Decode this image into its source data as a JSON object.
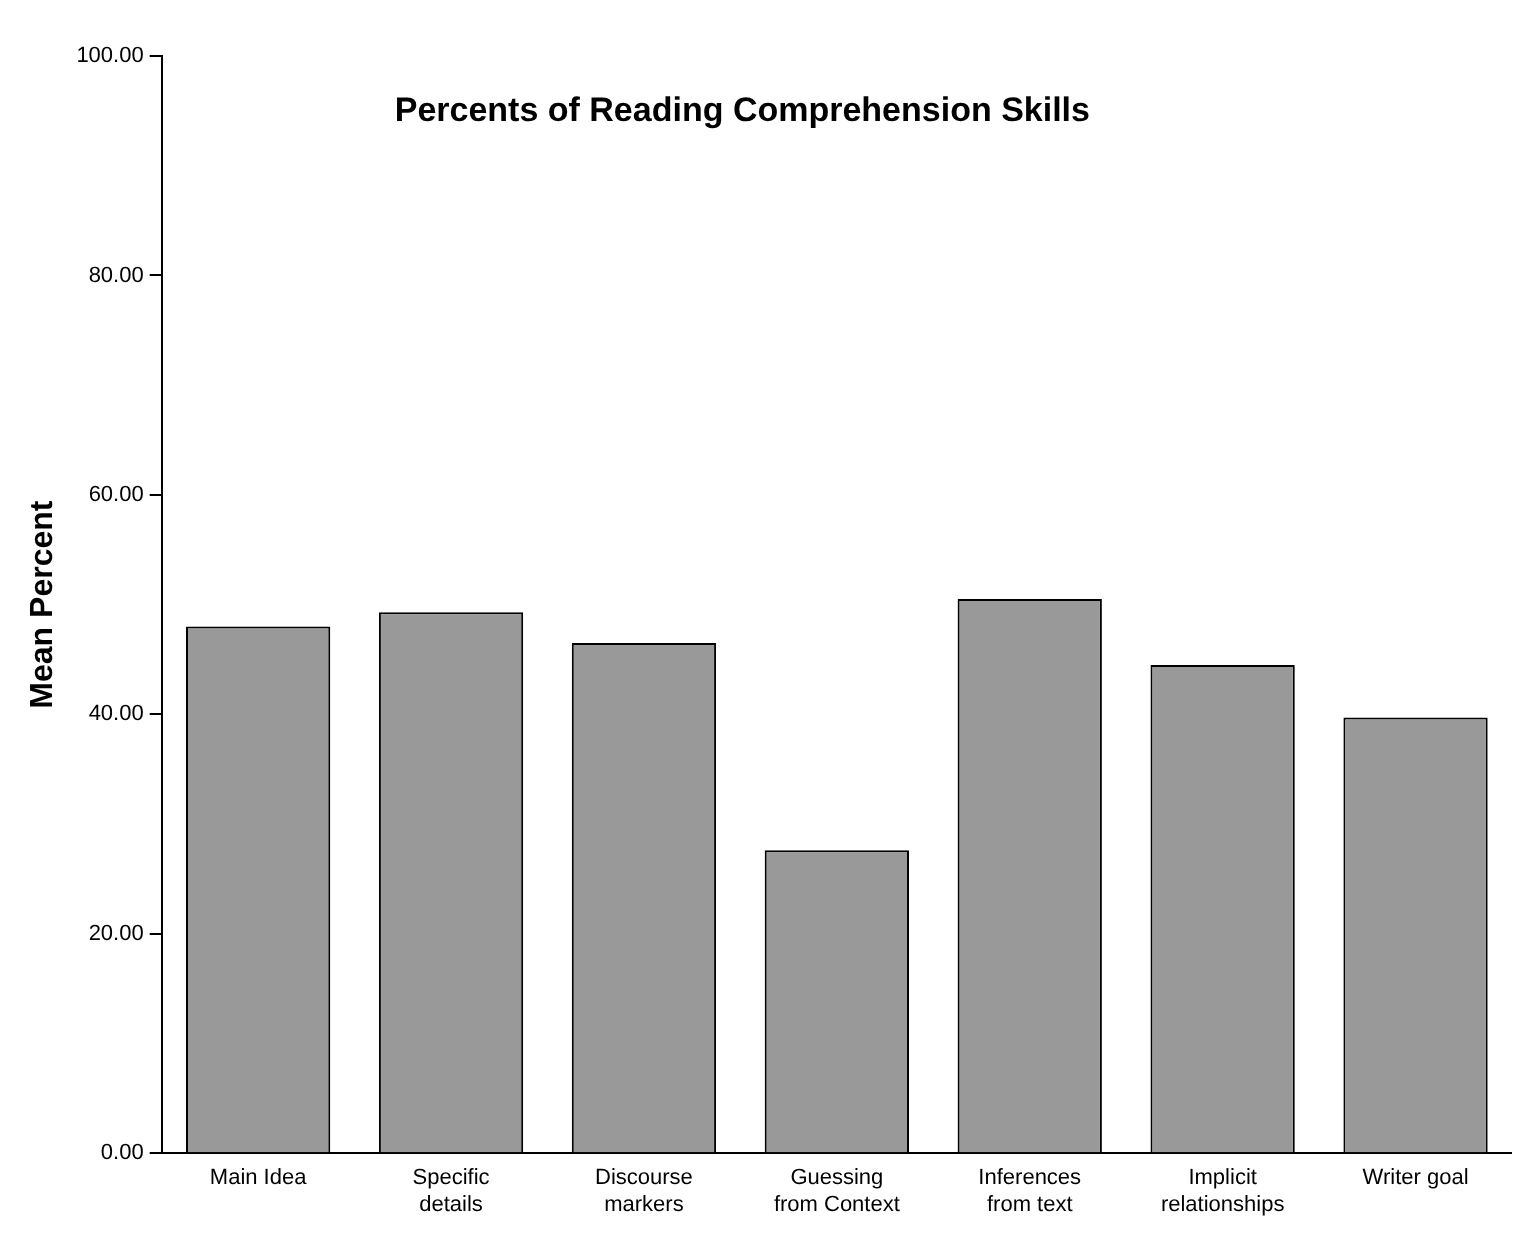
{
  "chart_data": {
    "type": "bar",
    "title": "Percents of Reading Comprehension Skills",
    "ylabel": "Mean Percent",
    "categories": [
      "Main Idea",
      "Specific details",
      "Discourse markers",
      "Guessing from Context",
      "Inferences from text",
      "Implicit relationships",
      "Writer goal"
    ],
    "values": [
      48.0,
      49.3,
      46.5,
      27.6,
      50.5,
      44.5,
      39.7
    ],
    "color": "#999999",
    "ylim": [
      0,
      100
    ],
    "yticks": [
      {
        "value": 0,
        "label": "0.00"
      },
      {
        "value": 20,
        "label": "20.00"
      },
      {
        "value": 40,
        "label": "40.00"
      },
      {
        "value": 60,
        "label": "60.00"
      },
      {
        "value": 80,
        "label": "80.00"
      },
      {
        "value": 100,
        "label": "100.00"
      }
    ],
    "grid": false,
    "legend": false
  }
}
